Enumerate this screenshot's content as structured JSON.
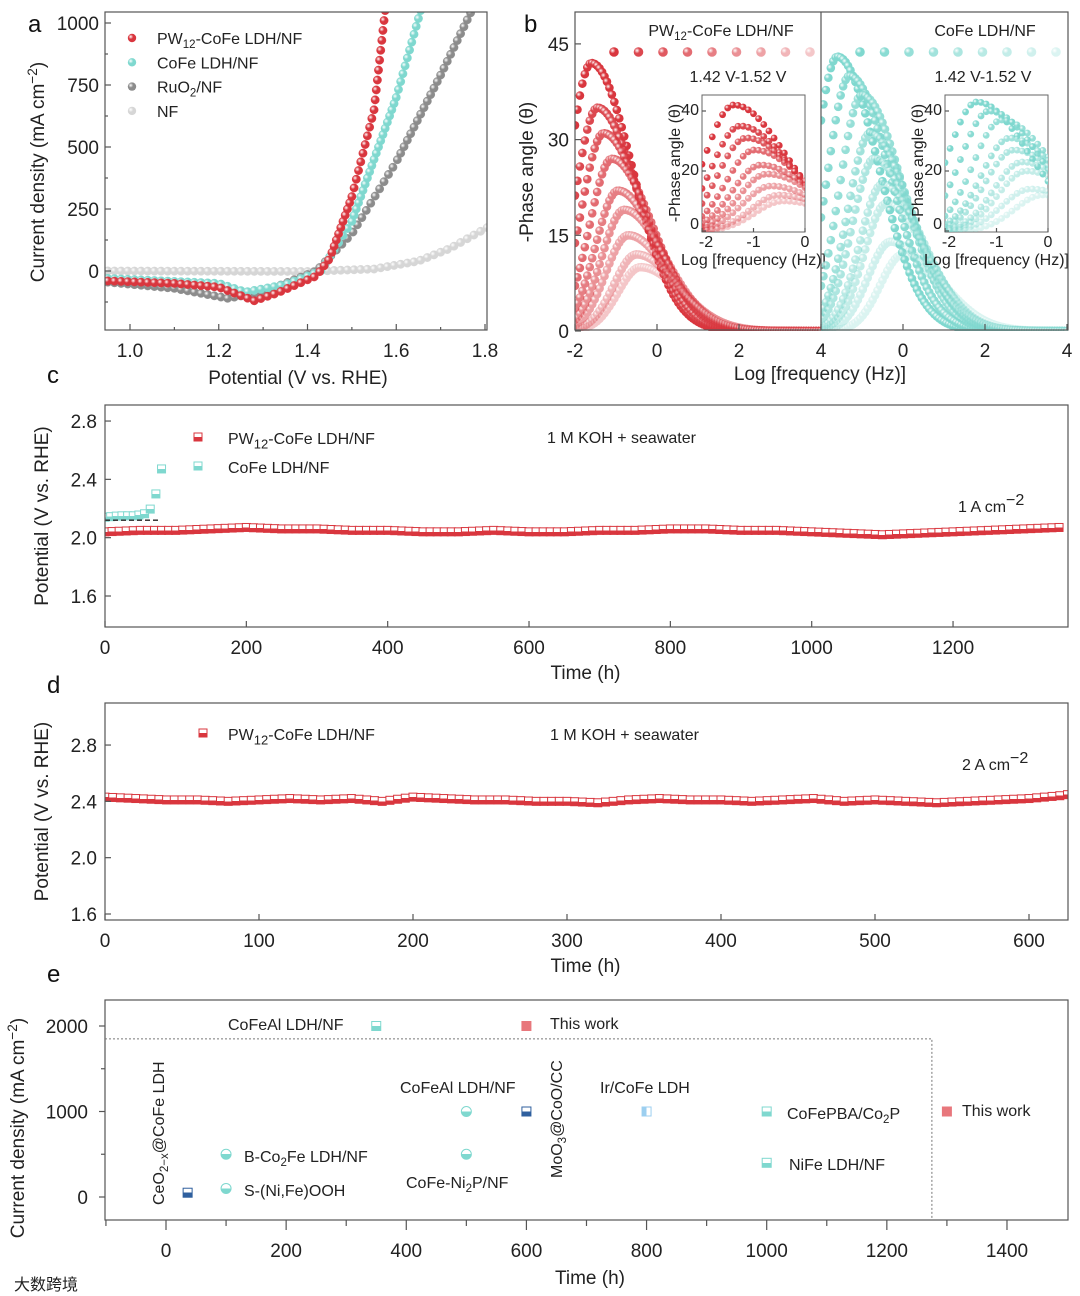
{
  "panel_labels": [
    "a",
    "b",
    "c",
    "d",
    "e"
  ],
  "watermark": "大数跨境",
  "colors": {
    "pw12": "#d9363e",
    "cofe": "#7fd8cf",
    "ruo2": "#8c8c8c",
    "nf": "#d6d6d6",
    "dark_blue": "#2f5f9e",
    "light_blue": "#9ccff0",
    "this_work": "#e8777c"
  },
  "chart_data": [
    {
      "type": "scatter",
      "title": "",
      "xlabel": "Potential (V vs. RHE)",
      "ylabel": "Current density (mA cm−2)",
      "xlim": [
        0.95,
        1.81
      ],
      "ylim": [
        -235,
        1045
      ],
      "x_tick_labels": [
        "1.0",
        "1.2",
        "1.4",
        "1.6",
        "1.8"
      ],
      "y_tick_labels": [
        "0",
        "250",
        "500",
        "750",
        "1000"
      ],
      "legend_position": "top-left",
      "series": [
        {
          "name": "PW12-CoFe LDH/NF",
          "color": "#d9363e",
          "points": [
            [
              0.95,
              -40
            ],
            [
              1.1,
              -50
            ],
            [
              1.2,
              -65
            ],
            [
              1.28,
              -120
            ],
            [
              1.33,
              -90
            ],
            [
              1.42,
              -20
            ],
            [
              1.45,
              50
            ],
            [
              1.5,
              300
            ],
            [
              1.55,
              650
            ],
            [
              1.575,
              1050
            ]
          ]
        },
        {
          "name": "CoFe LDH/NF",
          "color": "#7fd8cf",
          "points": [
            [
              0.95,
              -30
            ],
            [
              1.2,
              -50
            ],
            [
              1.26,
              -85
            ],
            [
              1.35,
              -55
            ],
            [
              1.43,
              0
            ],
            [
              1.5,
              200
            ],
            [
              1.6,
              700
            ],
            [
              1.655,
              1050
            ]
          ]
        },
        {
          "name": "RuO2/NF",
          "color": "#8c8c8c",
          "points": [
            [
              0.95,
              -45
            ],
            [
              1.1,
              -70
            ],
            [
              1.22,
              -110
            ],
            [
              1.3,
              -85
            ],
            [
              1.42,
              0
            ],
            [
              1.5,
              150
            ],
            [
              1.6,
              440
            ],
            [
              1.7,
              790
            ],
            [
              1.77,
              1050
            ]
          ]
        },
        {
          "name": "NF",
          "color": "#d6d6d6",
          "points": [
            [
              0.95,
              0
            ],
            [
              1.4,
              -2
            ],
            [
              1.55,
              8
            ],
            [
              1.65,
              40
            ],
            [
              1.72,
              90
            ],
            [
              1.81,
              180
            ]
          ]
        }
      ]
    },
    {
      "type": "scatter",
      "xlabel": "Log [frequency (Hz)]",
      "ylabel": "-Phase angle (θ)",
      "xlim": [
        -2,
        4
      ],
      "ylim": [
        0,
        50
      ],
      "x_tick_labels": [
        "-2",
        "0",
        "2",
        "4",
        "0",
        "2",
        "4"
      ],
      "y_tick_labels": [
        "0",
        "15",
        "30",
        "45"
      ],
      "potential_range": "1.42 V-1.52 V",
      "subplots": [
        {
          "name": "PW12-CoFe LDH/NF",
          "color": "#d9363e",
          "peak_heights": [
            42,
            35,
            31,
            27,
            22,
            19,
            15,
            12,
            10
          ],
          "peak_logf": [
            -1.6,
            -1.45,
            -1.3,
            -1.1,
            -0.95,
            -0.8,
            -0.7,
            -0.5,
            -0.4
          ]
        },
        {
          "name": "CoFe LDH/NF",
          "color": "#7fd8cf",
          "peak_heights": [
            43,
            40,
            37,
            31,
            27,
            23,
            20,
            14,
            12
          ],
          "peak_logf": [
            -1.6,
            -1.3,
            -1.0,
            -0.8,
            -0.7,
            -0.5,
            -0.4,
            -0.3,
            0.0
          ]
        }
      ],
      "inset": {
        "xlabel": "Log [frequency (Hz)]",
        "ylabel": "-Phase angle (θ)",
        "xlim": [
          -2,
          0
        ],
        "ylim": [
          0,
          45
        ],
        "x_tick_labels": [
          "-2",
          "-1",
          "0"
        ],
        "y_tick_labels": [
          "0",
          "20",
          "40"
        ]
      }
    },
    {
      "type": "line",
      "xlabel": "Time (h)",
      "ylabel": "Potential (V vs. RHE)",
      "xlim": [
        0,
        1365
      ],
      "ylim": [
        1.45,
        2.92
      ],
      "x_tick_labels": [
        "0",
        "200",
        "400",
        "600",
        "800",
        "1000",
        "1200"
      ],
      "y_tick_labels": [
        "1.6",
        "2.0",
        "2.4",
        "2.8"
      ],
      "condition": "1 M KOH + seawater",
      "current_density": "1 A cm−2",
      "series": [
        {
          "name": "PW12-CoFe LDH/NF",
          "color": "#d9363e",
          "t_step": 50,
          "values": [
            2.04,
            2.05,
            2.05,
            2.06,
            2.07,
            2.06,
            2.06,
            2.05,
            2.05,
            2.04,
            2.04,
            2.05,
            2.04,
            2.04,
            2.05,
            2.05,
            2.06,
            2.06,
            2.05,
            2.05,
            2.04,
            2.03,
            2.02,
            2.03,
            2.04,
            2.05,
            2.06,
            2.07
          ]
        },
        {
          "name": "CoFe LDH/NF",
          "color": "#7fd8cf",
          "t": [
            0,
            20,
            40,
            55,
            65,
            72,
            78,
            85
          ],
          "values": [
            2.14,
            2.15,
            2.15,
            2.16,
            2.2,
            2.3,
            2.42,
            2.6
          ]
        }
      ],
      "reference_line_value": 2.12
    },
    {
      "type": "line",
      "xlabel": "Time (h)",
      "ylabel": "Potential (V vs. RHE)",
      "xlim": [
        0,
        625
      ],
      "ylim": [
        1.55,
        3.05
      ],
      "x_tick_labels": [
        "0",
        "100",
        "200",
        "300",
        "400",
        "500",
        "600"
      ],
      "y_tick_labels": [
        "1.6",
        "2.0",
        "2.4",
        "2.8"
      ],
      "condition": "1 M KOH + seawater",
      "current_density": "2 A cm−2",
      "series": [
        {
          "name": "PW12-CoFe LDH/NF",
          "color": "#d9363e",
          "t_step": 20,
          "values": [
            2.43,
            2.42,
            2.41,
            2.41,
            2.4,
            2.41,
            2.42,
            2.41,
            2.42,
            2.4,
            2.43,
            2.42,
            2.41,
            2.41,
            2.4,
            2.4,
            2.39,
            2.41,
            2.42,
            2.41,
            2.41,
            2.4,
            2.41,
            2.42,
            2.4,
            2.41,
            2.4,
            2.39,
            2.4,
            2.41,
            2.42,
            2.44,
            2.47
          ]
        }
      ]
    },
    {
      "type": "scatter",
      "xlabel": "Time (h)",
      "ylabel": "Current density (mA cm−2)",
      "xlim": [
        -100,
        1500
      ],
      "ylim": [
        -270,
        2250
      ],
      "x_tick_labels": [
        "0",
        "200",
        "400",
        "600",
        "800",
        "1000",
        "1200",
        "1400"
      ],
      "y_tick_labels": [
        "0",
        "1000",
        "2000"
      ],
      "points": [
        {
          "label": "CeO2−x@CoFe LDH",
          "x": 36,
          "y": 50,
          "marker": "square-half",
          "color": "#2f5f9e"
        },
        {
          "label": "S-(Ni,Fe)OOH",
          "x": 100,
          "y": 100,
          "marker": "circle-half",
          "color": "#7fd8cf"
        },
        {
          "label": "B-Co2Fe LDH/NF",
          "x": 100,
          "y": 500,
          "marker": "circle-half",
          "color": "#7fd8cf"
        },
        {
          "label": "CoFeAl LDH/NF",
          "x": 350,
          "y": 2000,
          "marker": "square-half",
          "color": "#7fd8cf"
        },
        {
          "label": "This work",
          "x": 600,
          "y": 2000,
          "marker": "square-solid",
          "color": "#e8777c"
        },
        {
          "label": "CoFeAl LDH/NF",
          "x": 500,
          "y": 1000,
          "marker": "circle-half",
          "color": "#7fd8cf"
        },
        {
          "label": "CoFe-Ni2P/NF",
          "x": 500,
          "y": 500,
          "marker": "circle-half",
          "color": "#7fd8cf"
        },
        {
          "label": "MoO3@CoO/CC",
          "x": 600,
          "y": 1000,
          "marker": "square-half",
          "color": "#2f5f9e"
        },
        {
          "label": "Ir/CoFe LDH",
          "x": 800,
          "y": 1000,
          "marker": "square-vhalf",
          "color": "#9ccff0"
        },
        {
          "label": "CoFePBA/Co2P",
          "x": 1000,
          "y": 1000,
          "marker": "square-half",
          "color": "#7fd8cf"
        },
        {
          "label": "NiFe LDH/NF",
          "x": 1000,
          "y": 400,
          "marker": "square-half",
          "color": "#7fd8cf"
        },
        {
          "label": "This work",
          "x": 1300,
          "y": 1000,
          "marker": "square-solid",
          "color": "#e8777c"
        }
      ],
      "dotted_region": {
        "x_max": 1275,
        "y_max": 1850
      }
    }
  ]
}
